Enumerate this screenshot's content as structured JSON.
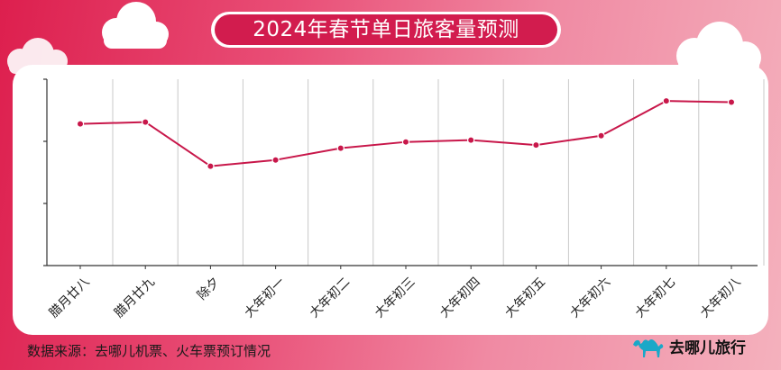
{
  "title": "2024年春节单日旅客量预测",
  "source": "数据来源：去哪儿机票、火车票预订情况",
  "logo_text": "去哪儿旅行",
  "colors": {
    "line": "#c8174a",
    "title_bg": "#d21c4e",
    "grid": "#c9c9c9",
    "axis": "#333333"
  },
  "chart_data": {
    "type": "line",
    "title": "2024年春节单日旅客量预测",
    "xlabel": "",
    "ylabel": "",
    "categories": [
      "腊月廿八",
      "腊月廿九",
      "除夕",
      "大年初一",
      "大年初二",
      "大年初三",
      "大年初四",
      "大年初五",
      "大年初六",
      "大年初七",
      "大年初八"
    ],
    "series": [
      {
        "values": [
          2.28,
          2.31,
          1.6,
          1.7,
          1.89,
          1.99,
          2.02,
          1.94,
          2.09,
          2.65,
          2.63
        ]
      }
    ],
    "ylim": [
      0,
      3
    ],
    "y_ticks": [
      0,
      1,
      2,
      3
    ],
    "y_tick_labels_shown": false,
    "grid": "vertical",
    "legend": "none"
  }
}
